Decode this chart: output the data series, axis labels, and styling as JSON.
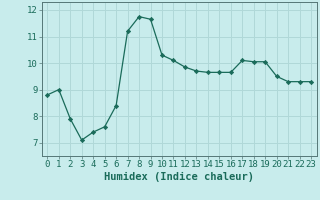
{
  "xlabel": "Humidex (Indice chaleur)",
  "x_values": [
    0,
    1,
    2,
    3,
    4,
    5,
    6,
    7,
    8,
    9,
    10,
    11,
    12,
    13,
    14,
    15,
    16,
    17,
    18,
    19,
    20,
    21,
    22,
    23
  ],
  "y_values": [
    8.8,
    9.0,
    7.9,
    7.1,
    7.4,
    7.6,
    8.4,
    11.2,
    11.75,
    11.65,
    10.3,
    10.1,
    9.85,
    9.7,
    9.65,
    9.65,
    9.65,
    10.1,
    10.05,
    10.05,
    9.5,
    9.3,
    9.3,
    9.3
  ],
  "line_color": "#1a6b5a",
  "marker": "D",
  "marker_size": 2.2,
  "bg_color": "#c8ecec",
  "grid_color": "#b0d8d8",
  "ylim": [
    6.5,
    12.3
  ],
  "yticks": [
    7,
    8,
    9,
    10,
    11,
    12
  ],
  "xlim": [
    -0.5,
    23.5
  ],
  "tick_fontsize": 6.5,
  "label_fontsize": 7.5
}
